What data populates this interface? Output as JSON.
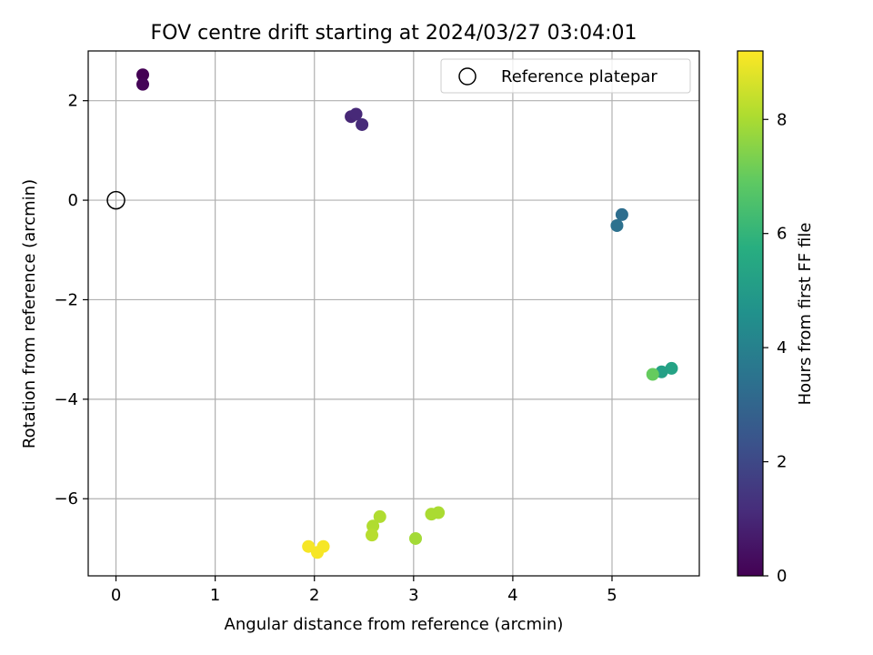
{
  "chart_data": {
    "type": "scatter",
    "title": "FOV centre drift starting at 2024/03/27 03:04:01",
    "xlabel": "Angular distance from reference (arcmin)",
    "ylabel": "Rotation from reference (arcmin)",
    "xlim": [
      -0.28,
      5.88
    ],
    "ylim": [
      -7.55,
      3.0
    ],
    "xticks": [
      0,
      1,
      2,
      3,
      4,
      5
    ],
    "yticks": [
      2,
      0,
      -2,
      -4,
      -6
    ],
    "ytick_labels": [
      "2",
      "0",
      "−2",
      "−4",
      "−6"
    ],
    "grid": true,
    "legend": {
      "location": "top-right",
      "label": "Reference platepar"
    },
    "reference": {
      "x": 0,
      "y": 0
    },
    "colorbar": {
      "label": "Hours from first FF file",
      "range": [
        0,
        9.2
      ],
      "ticks": [
        0,
        2,
        4,
        6,
        8
      ],
      "colormap": "viridis"
    },
    "points": [
      {
        "x": 0.27,
        "y": 2.52,
        "h": 0.0
      },
      {
        "x": 0.27,
        "y": 2.33,
        "h": 0.1
      },
      {
        "x": 2.37,
        "y": 1.68,
        "h": 1.0
      },
      {
        "x": 2.42,
        "y": 1.73,
        "h": 1.05
      },
      {
        "x": 2.48,
        "y": 1.52,
        "h": 1.1
      },
      {
        "x": 5.1,
        "y": -0.29,
        "h": 3.3
      },
      {
        "x": 5.05,
        "y": -0.51,
        "h": 3.4
      },
      {
        "x": 5.6,
        "y": -3.38,
        "h": 5.3
      },
      {
        "x": 5.5,
        "y": -3.45,
        "h": 5.2
      },
      {
        "x": 5.41,
        "y": -3.5,
        "h": 7.0
      },
      {
        "x": 3.02,
        "y": -6.8,
        "h": 7.9
      },
      {
        "x": 3.18,
        "y": -6.31,
        "h": 8.0
      },
      {
        "x": 3.25,
        "y": -6.28,
        "h": 8.0
      },
      {
        "x": 2.66,
        "y": -6.36,
        "h": 8.1
      },
      {
        "x": 2.59,
        "y": -6.55,
        "h": 8.1
      },
      {
        "x": 2.58,
        "y": -6.73,
        "h": 8.2
      },
      {
        "x": 1.94,
        "y": -6.96,
        "h": 9.1
      },
      {
        "x": 2.09,
        "y": -6.96,
        "h": 9.1
      },
      {
        "x": 2.03,
        "y": -7.08,
        "h": 9.1
      }
    ]
  }
}
